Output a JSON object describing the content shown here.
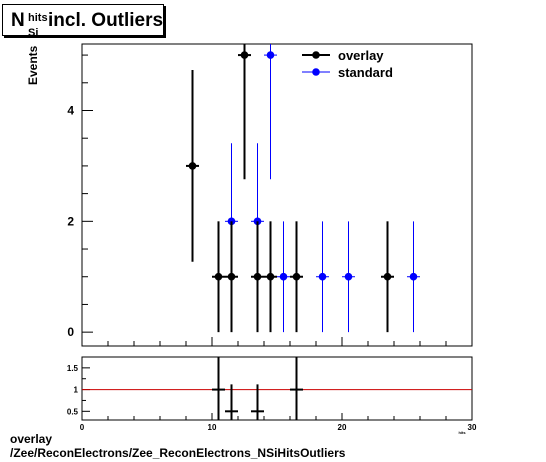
{
  "title": {
    "symbol": "N",
    "superscript": "hits",
    "subscript": "Si",
    "rest": "incl. Outliers"
  },
  "footer": {
    "line1": "overlay",
    "line2": "/Zee/ReconElectrons/Zee_ReconElectrons_NSiHitsOutliers"
  },
  "colors": {
    "overlay": "#000000",
    "standard": "#0000ff",
    "ratio_line": "#cc0000"
  },
  "chart_data": [
    {
      "type": "scatter",
      "ylabel": "Events",
      "xlim": [
        0,
        30
      ],
      "ylim": [
        -0.25,
        5.2
      ],
      "x_ticks": [
        0,
        10,
        20,
        30
      ],
      "y_ticks": [
        0,
        2,
        4
      ],
      "grid": false,
      "legend_position": "top-right",
      "series": [
        {
          "name": "overlay",
          "color": "#000000",
          "points": [
            {
              "x": 8.5,
              "y": 3,
              "ylo": 1.27,
              "yhi": 4.73
            },
            {
              "x": 10.5,
              "y": 1,
              "ylo": 0,
              "yhi": 2
            },
            {
              "x": 11.5,
              "y": 1,
              "ylo": 0,
              "yhi": 2
            },
            {
              "x": 12.5,
              "y": 5,
              "ylo": 2.76,
              "yhi": 7.24
            },
            {
              "x": 13.5,
              "y": 1,
              "ylo": 0,
              "yhi": 2
            },
            {
              "x": 14.5,
              "y": 1,
              "ylo": 0,
              "yhi": 2
            },
            {
              "x": 16.5,
              "y": 1,
              "ylo": 0,
              "yhi": 2
            },
            {
              "x": 23.5,
              "y": 1,
              "ylo": 0,
              "yhi": 2
            }
          ]
        },
        {
          "name": "standard",
          "color": "#0000ff",
          "points": [
            {
              "x": 11.5,
              "y": 2,
              "ylo": 0.59,
              "yhi": 3.41
            },
            {
              "x": 13.5,
              "y": 2,
              "ylo": 0.59,
              "yhi": 3.41
            },
            {
              "x": 14.5,
              "y": 5,
              "ylo": 2.76,
              "yhi": 7.24
            },
            {
              "x": 15.5,
              "y": 1,
              "ylo": 0,
              "yhi": 2
            },
            {
              "x": 18.5,
              "y": 1,
              "ylo": 0,
              "yhi": 2
            },
            {
              "x": 20.5,
              "y": 1,
              "ylo": 0,
              "yhi": 2
            },
            {
              "x": 25.5,
              "y": 1,
              "ylo": 0,
              "yhi": 2
            }
          ]
        }
      ]
    },
    {
      "type": "scatter",
      "xlim": [
        0,
        30
      ],
      "ylim": [
        0.3,
        1.75
      ],
      "x_ticks": [
        0,
        10,
        20,
        30
      ],
      "y_ticks": [
        0.5,
        1,
        1.5
      ],
      "x_tick_labels": [
        "0",
        "10",
        "20",
        "30"
      ],
      "y_tick_labels": [
        "0.5",
        "1",
        "1.5"
      ],
      "x_axis_label_small": "hits",
      "reference_line": 1,
      "series": [
        {
          "name": "ratio",
          "color": "#000000",
          "points": [
            {
              "x": 10.5,
              "y": 1,
              "ylo": 0.3,
              "yhi": 1.75
            },
            {
              "x": 11.5,
              "y": 0.5,
              "ylo": 0.3,
              "yhi": 1.12
            },
            {
              "x": 13.5,
              "y": 0.5,
              "ylo": 0.3,
              "yhi": 1.12
            },
            {
              "x": 16.5,
              "y": 1,
              "ylo": 0.3,
              "yhi": 1.75
            }
          ]
        }
      ]
    }
  ]
}
